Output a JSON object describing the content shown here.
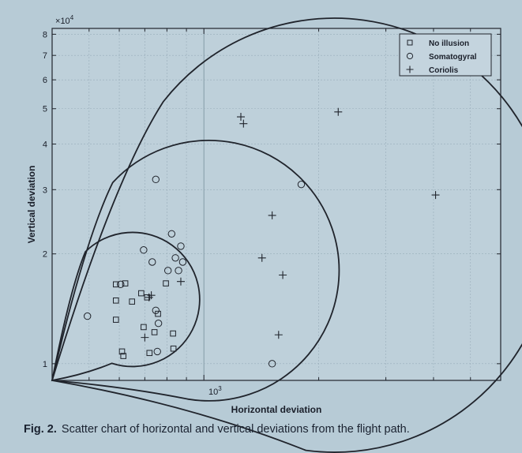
{
  "chart_data": {
    "type": "scatter",
    "xlabel": "Horizontal deviation",
    "ylabel": "Vertical deviation",
    "x_scale": "log",
    "y_scale": "log",
    "x_tick_labels": [
      "10"
    ],
    "x_tick_exponent": "3",
    "y_tick_labels": [
      "1",
      "2",
      "3",
      "4",
      "5",
      "6",
      "7",
      "8"
    ],
    "y_multiplier_base": "10",
    "y_multiplier_exp": "4",
    "grid": true,
    "legend_position": "top-right",
    "series": [
      {
        "name": "No illusion",
        "marker": "square",
        "points": [
          [
            588,
            16500
          ],
          [
            588,
            14900
          ],
          [
            588,
            13200
          ],
          [
            610,
            10800
          ],
          [
            615,
            10500
          ],
          [
            622,
            16600
          ],
          [
            648,
            14800
          ],
          [
            685,
            15600
          ],
          [
            695,
            12600
          ],
          [
            710,
            15200
          ],
          [
            720,
            10700
          ],
          [
            742,
            12200
          ],
          [
            758,
            13700
          ],
          [
            795,
            16600
          ],
          [
            830,
            12100
          ],
          [
            832,
            11000
          ]
        ]
      },
      {
        "name": "Somatogyral",
        "marker": "circle",
        "points": [
          [
            495,
            13500
          ],
          [
            605,
            16500
          ],
          [
            695,
            20500
          ],
          [
            732,
            19000
          ],
          [
            748,
            32000
          ],
          [
            748,
            14000
          ],
          [
            755,
            10800
          ],
          [
            760,
            12900
          ],
          [
            805,
            18000
          ],
          [
            823,
            22700
          ],
          [
            842,
            19500
          ],
          [
            858,
            18000
          ],
          [
            870,
            21000
          ],
          [
            880,
            19000
          ],
          [
            1510,
            10000
          ],
          [
            1800,
            31000
          ]
        ]
      },
      {
        "name": "Coriolis",
        "marker": "plus",
        "points": [
          [
            700,
            11800
          ],
          [
            718,
            15200
          ],
          [
            728,
            15400
          ],
          [
            870,
            16800
          ],
          [
            1250,
            47500
          ],
          [
            1270,
            45500
          ],
          [
            1420,
            19500
          ],
          [
            1510,
            25500
          ],
          [
            1570,
            12000
          ],
          [
            1610,
            17500
          ],
          [
            2250,
            49000
          ],
          [
            4050,
            29000
          ]
        ]
      }
    ]
  },
  "caption": {
    "label": "Fig. 2.",
    "text": "Scatter chart of horizontal and vertical deviations from the flight path."
  }
}
